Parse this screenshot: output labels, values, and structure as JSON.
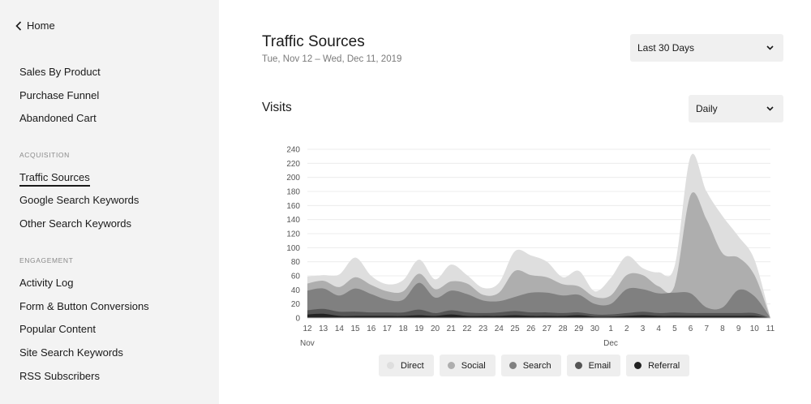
{
  "sidebar": {
    "home_label": "Home",
    "items_top": [
      "Sales By Product",
      "Purchase Funnel",
      "Abandoned Cart"
    ],
    "acquisition_label": "ACQUISITION",
    "acquisition_items": [
      "Traffic Sources",
      "Google Search Keywords",
      "Other Search Keywords"
    ],
    "engagement_label": "ENGAGEMENT",
    "engagement_items": [
      "Activity Log",
      "Form & Button Conversions",
      "Popular Content",
      "Site Search Keywords",
      "RSS Subscribers"
    ],
    "active_item": "Traffic Sources"
  },
  "header": {
    "title": "Traffic Sources",
    "date_range": "Tue, Nov 12 – Wed, Dec 11, 2019",
    "range_select": "Last 30 Days"
  },
  "visits": {
    "title": "Visits",
    "granularity_select": "Daily"
  },
  "chart_data": {
    "type": "area",
    "stacked": true,
    "x": [
      "12",
      "13",
      "14",
      "15",
      "16",
      "17",
      "18",
      "19",
      "20",
      "21",
      "22",
      "23",
      "24",
      "25",
      "26",
      "27",
      "28",
      "29",
      "30",
      "1",
      "2",
      "3",
      "4",
      "5",
      "6",
      "7",
      "8",
      "9",
      "10",
      "11"
    ],
    "month_labels": [
      "Nov",
      "Dec"
    ],
    "y_ticks": [
      0,
      20,
      40,
      60,
      80,
      100,
      120,
      140,
      160,
      180,
      200,
      220,
      240
    ],
    "ylim": [
      0,
      240
    ],
    "grid": true,
    "legend_position": "bottom",
    "series": [
      {
        "name": "Referral",
        "color": "#222222",
        "values": [
          5,
          6,
          3,
          3,
          3,
          3,
          3,
          4,
          3,
          5,
          3,
          3,
          3,
          4,
          3,
          3,
          3,
          4,
          2,
          2,
          3,
          4,
          3,
          3,
          3,
          3,
          3,
          3,
          3,
          0
        ]
      },
      {
        "name": "Email",
        "color": "#555555",
        "values": [
          6,
          7,
          6,
          6,
          5,
          5,
          5,
          8,
          4,
          6,
          5,
          4,
          5,
          6,
          5,
          5,
          4,
          4,
          3,
          3,
          4,
          5,
          4,
          5,
          4,
          4,
          4,
          4,
          4,
          0
        ]
      },
      {
        "name": "Search",
        "color": "#808080",
        "values": [
          28,
          29,
          23,
          33,
          26,
          18,
          18,
          38,
          22,
          28,
          26,
          18,
          16,
          20,
          28,
          28,
          25,
          25,
          15,
          15,
          34,
          32,
          28,
          28,
          28,
          8,
          8,
          33,
          24,
          0
        ]
      },
      {
        "name": "Social",
        "color": "#aeaeae",
        "values": [
          10,
          11,
          12,
          16,
          13,
          12,
          12,
          13,
          12,
          13,
          15,
          8,
          12,
          37,
          25,
          22,
          16,
          12,
          10,
          12,
          20,
          20,
          10,
          10,
          140,
          125,
          77,
          46,
          30,
          0
        ]
      },
      {
        "name": "Direct",
        "color": "#dedede",
        "values": [
          10,
          8,
          18,
          28,
          13,
          10,
          16,
          20,
          14,
          24,
          12,
          10,
          14,
          28,
          28,
          22,
          10,
          22,
          8,
          25,
          27,
          10,
          20,
          28,
          55,
          40,
          53,
          30,
          22,
          0
        ]
      }
    ],
    "legend": [
      "Direct",
      "Social",
      "Search",
      "Email",
      "Referral"
    ],
    "legend_colors": [
      "#dedede",
      "#aeaeae",
      "#808080",
      "#555555",
      "#222222"
    ]
  }
}
